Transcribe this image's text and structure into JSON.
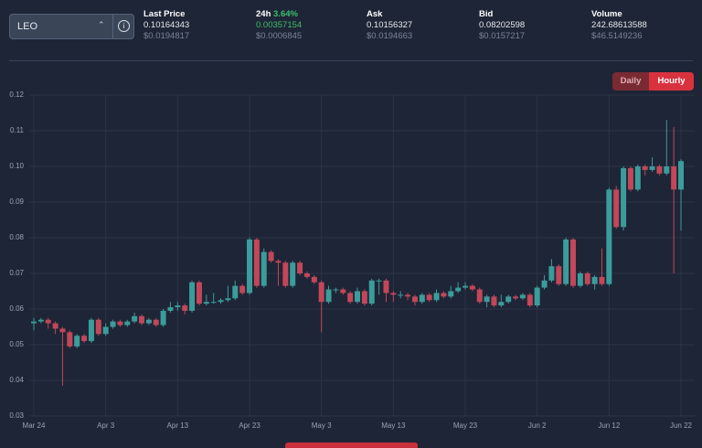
{
  "ticker": {
    "selected": "LEO",
    "stats": [
      {
        "label": "Last Price",
        "value": "0.10164343",
        "usd": "$0.0194817"
      },
      {
        "label": "24h",
        "change": "3.64%",
        "value": "0.00357154",
        "usd": "$0.0006845"
      },
      {
        "label": "Ask",
        "value": "0.10156327",
        "usd": "$0.0194663"
      },
      {
        "label": "Bid",
        "value": "0.08202598",
        "usd": "$0.0157217"
      },
      {
        "label": "Volume",
        "value": "242.68613588",
        "usd": "$46.5149236"
      }
    ],
    "intervals": [
      "Daily",
      "Hourly"
    ]
  },
  "chart_data": {
    "type": "candlestick",
    "up_color": "#3a9d9b",
    "down_color": "#c2475a",
    "grid": true,
    "categories": [
      "Mar 24",
      null,
      null,
      null,
      null,
      null,
      null,
      null,
      null,
      null,
      "Apr 3",
      null,
      null,
      null,
      null,
      null,
      null,
      null,
      null,
      null,
      "Apr 13",
      null,
      null,
      null,
      null,
      null,
      null,
      null,
      null,
      null,
      "Apr 23",
      null,
      null,
      null,
      null,
      null,
      null,
      null,
      null,
      null,
      "May 3",
      null,
      null,
      null,
      null,
      null,
      null,
      null,
      null,
      null,
      "May 13",
      null,
      null,
      null,
      null,
      null,
      null,
      null,
      null,
      null,
      "May 23",
      null,
      null,
      null,
      null,
      null,
      null,
      null,
      null,
      null,
      "Jun 2",
      null,
      null,
      null,
      null,
      null,
      null,
      null,
      null,
      null,
      "Jun 12",
      null,
      null,
      null,
      null,
      null,
      null,
      null,
      null,
      null,
      "Jun 22"
    ],
    "open": [
      0.056,
      0.0565,
      0.057,
      0.056,
      0.0545,
      0.0535,
      0.0495,
      0.0525,
      0.051,
      0.057,
      0.053,
      0.055,
      0.0565,
      0.0555,
      0.0565,
      0.058,
      0.056,
      0.057,
      0.0555,
      0.0595,
      0.0605,
      0.061,
      0.0595,
      0.0675,
      0.0615,
      0.062,
      0.062,
      0.0625,
      0.063,
      0.0665,
      0.0645,
      0.0795,
      0.0665,
      0.076,
      0.0735,
      0.073,
      0.0665,
      0.073,
      0.07,
      0.069,
      0.0675,
      0.062,
      0.0655,
      0.0655,
      0.0645,
      0.062,
      0.065,
      0.0615,
      0.068,
      0.068,
      0.0645,
      0.064,
      0.064,
      0.0635,
      0.062,
      0.064,
      0.0625,
      0.0645,
      0.0635,
      0.065,
      0.066,
      0.0665,
      0.0655,
      0.062,
      0.0635,
      0.061,
      0.062,
      0.0635,
      0.063,
      0.064,
      0.061,
      0.066,
      0.068,
      0.072,
      0.067,
      0.0795,
      0.0665,
      0.07,
      0.067,
      0.069,
      0.067,
      0.0935,
      0.083,
      0.0995,
      0.0935,
      0.1,
      0.099,
      0.1,
      0.098,
      0.1,
      0.0935
    ],
    "high": [
      0.0575,
      0.0575,
      0.0575,
      0.0565,
      0.055,
      0.054,
      0.053,
      0.053,
      0.0575,
      0.0575,
      0.056,
      0.057,
      0.057,
      0.057,
      0.059,
      0.0585,
      0.0575,
      0.0575,
      0.06,
      0.062,
      0.062,
      0.0615,
      0.068,
      0.068,
      0.064,
      0.0645,
      0.063,
      0.0665,
      0.068,
      0.067,
      0.08,
      0.08,
      0.077,
      0.0765,
      0.074,
      0.0735,
      0.0735,
      0.0735,
      0.0705,
      0.0695,
      0.068,
      0.0665,
      0.066,
      0.066,
      0.065,
      0.066,
      0.0655,
      0.0685,
      0.0685,
      0.0685,
      0.065,
      0.065,
      0.0645,
      0.064,
      0.0645,
      0.0645,
      0.0655,
      0.065,
      0.0665,
      0.0675,
      0.0675,
      0.067,
      0.066,
      0.064,
      0.064,
      0.064,
      0.064,
      0.064,
      0.0645,
      0.0645,
      0.0665,
      0.0695,
      0.074,
      0.0725,
      0.08,
      0.08,
      0.0705,
      0.0705,
      0.0695,
      0.077,
      0.094,
      0.0945,
      0.1,
      0.1,
      0.1005,
      0.1005,
      0.1025,
      0.1005,
      0.113,
      0.111,
      0.102
    ],
    "low": [
      0.054,
      0.056,
      0.0545,
      0.053,
      0.0385,
      0.049,
      0.049,
      0.0505,
      0.0505,
      0.0525,
      0.0525,
      0.0545,
      0.055,
      0.055,
      0.056,
      0.0555,
      0.0555,
      0.055,
      0.055,
      0.059,
      0.0595,
      0.0585,
      0.059,
      0.061,
      0.061,
      0.0615,
      0.0615,
      0.062,
      0.0625,
      0.064,
      0.064,
      0.066,
      0.066,
      0.073,
      0.0665,
      0.066,
      0.066,
      0.0695,
      0.0685,
      0.067,
      0.0535,
      0.0615,
      0.0645,
      0.064,
      0.0615,
      0.0615,
      0.061,
      0.061,
      0.064,
      0.062,
      0.062,
      0.063,
      0.0625,
      0.061,
      0.0615,
      0.062,
      0.062,
      0.063,
      0.063,
      0.0645,
      0.0655,
      0.065,
      0.0615,
      0.0605,
      0.0605,
      0.0605,
      0.0615,
      0.0625,
      0.0625,
      0.0605,
      0.0605,
      0.0655,
      0.0675,
      0.0665,
      0.0665,
      0.066,
      0.066,
      0.0665,
      0.0655,
      0.0665,
      0.0665,
      0.0825,
      0.082,
      0.093,
      0.093,
      0.0975,
      0.0985,
      0.0975,
      0.0975,
      0.07,
      0.082
    ],
    "close": [
      0.0565,
      0.057,
      0.056,
      0.0545,
      0.0535,
      0.0495,
      0.0525,
      0.051,
      0.057,
      0.053,
      0.055,
      0.0565,
      0.0555,
      0.0565,
      0.058,
      0.056,
      0.057,
      0.0555,
      0.0595,
      0.0605,
      0.061,
      0.0595,
      0.0675,
      0.0615,
      0.062,
      0.062,
      0.0625,
      0.063,
      0.0665,
      0.0645,
      0.0795,
      0.0665,
      0.076,
      0.0735,
      0.073,
      0.0665,
      0.073,
      0.07,
      0.069,
      0.0675,
      0.062,
      0.0655,
      0.0655,
      0.0645,
      0.062,
      0.065,
      0.0615,
      0.068,
      0.068,
      0.0645,
      0.064,
      0.064,
      0.0635,
      0.062,
      0.064,
      0.0625,
      0.0645,
      0.0635,
      0.065,
      0.066,
      0.0665,
      0.0655,
      0.062,
      0.0635,
      0.061,
      0.062,
      0.0635,
      0.063,
      0.064,
      0.061,
      0.066,
      0.068,
      0.072,
      0.067,
      0.0795,
      0.0665,
      0.07,
      0.067,
      0.069,
      0.067,
      0.0935,
      0.083,
      0.0995,
      0.0935,
      0.1,
      0.099,
      0.1,
      0.098,
      0.1,
      0.0935,
      0.1015
    ],
    "ylim": [
      0.03,
      0.12
    ],
    "yticks": [
      0.03,
      0.04,
      0.05,
      0.06,
      0.07,
      0.08,
      0.09,
      {
        "value": 0.1,
        "label": "0.10"
      },
      0.11,
      0.12
    ]
  }
}
